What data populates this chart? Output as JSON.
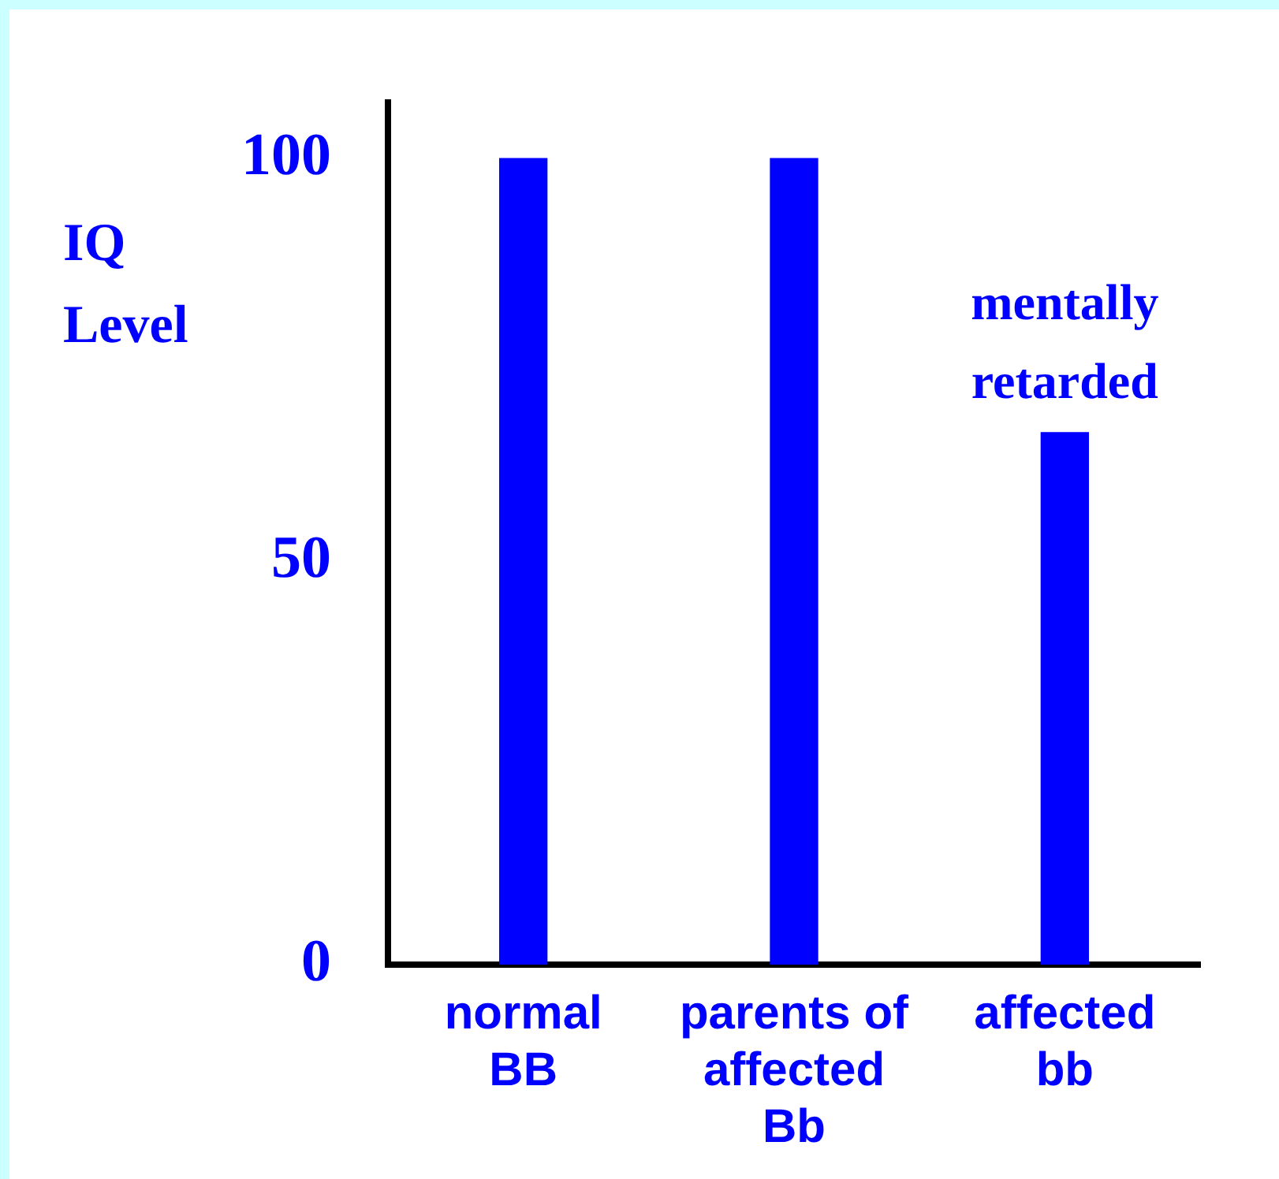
{
  "chart_data": {
    "type": "bar",
    "ylabel": "IQ Level",
    "categories": [
      "normal\nBB",
      "parents of\naffected\nBb",
      "affected\nbb"
    ],
    "values": [
      100,
      100,
      66
    ],
    "color": "#0000ff",
    "ylim": [
      0,
      107
    ],
    "yticks": [
      0,
      50,
      100
    ],
    "grid": false,
    "legend": false,
    "annotations": [
      {
        "text": "mentally retarded",
        "x": "affected\nbb",
        "y": 66
      }
    ]
  }
}
